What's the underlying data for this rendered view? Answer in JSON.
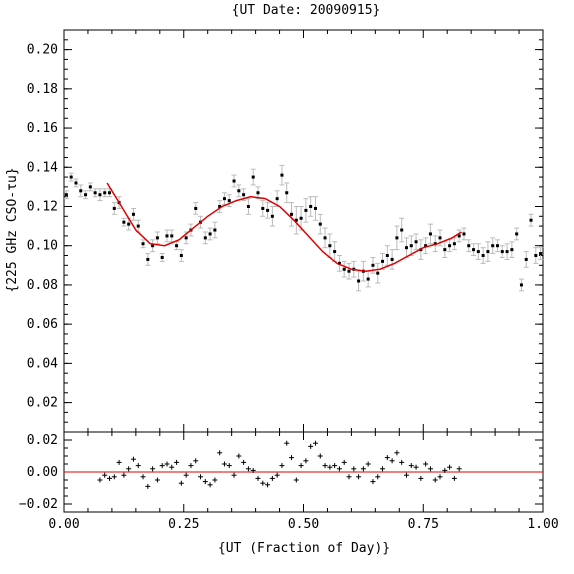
{
  "chart_data": [
    {
      "type": "scatter",
      "title": "{UT Date: 20090915}",
      "ylabel": "{225 GHz CSO-τu}",
      "xlabel": "",
      "xlim": [
        0,
        1
      ],
      "ylim": [
        0.005,
        0.21
      ],
      "yticks": [
        "0.02",
        "0.04",
        "0.06",
        "0.08",
        "0.10",
        "0.12",
        "0.14",
        "0.16",
        "0.18",
        "0.20"
      ],
      "xticks": [],
      "grid": false,
      "colors": {
        "fit": "#e00000",
        "errorbar": "#bbbbbb",
        "points": "#000000"
      },
      "series": [
        {
          "values_x": [
            0.005,
            0.015,
            0.025,
            0.035,
            0.045,
            0.055,
            0.065,
            0.075,
            0.085,
            0.095,
            0.105,
            0.115,
            0.125,
            0.135,
            0.145,
            0.155,
            0.165,
            0.175,
            0.185,
            0.195,
            0.205,
            0.215,
            0.225,
            0.235,
            0.245,
            0.255,
            0.265,
            0.275,
            0.285,
            0.295,
            0.305,
            0.315,
            0.325,
            0.335,
            0.345,
            0.355,
            0.365,
            0.375,
            0.385,
            0.395,
            0.405,
            0.415,
            0.425,
            0.435,
            0.445,
            0.455,
            0.465,
            0.475,
            0.485,
            0.495,
            0.505,
            0.515,
            0.525,
            0.535,
            0.545,
            0.555,
            0.565,
            0.575,
            0.585,
            0.595,
            0.605,
            0.615,
            0.625,
            0.635,
            0.645,
            0.655,
            0.665,
            0.675,
            0.685,
            0.695,
            0.705,
            0.715,
            0.725,
            0.735,
            0.745,
            0.755,
            0.765,
            0.775,
            0.785,
            0.795,
            0.805,
            0.815,
            0.825,
            0.835,
            0.845,
            0.855,
            0.865,
            0.875,
            0.885,
            0.895,
            0.905,
            0.915,
            0.925,
            0.935,
            0.945,
            0.955,
            0.965,
            0.975,
            0.985,
            0.995
          ],
          "values_y": [
            0.126,
            0.135,
            0.132,
            0.128,
            0.126,
            0.13,
            0.127,
            0.126,
            0.127,
            0.127,
            0.119,
            0.122,
            0.112,
            0.111,
            0.116,
            0.11,
            0.101,
            0.093,
            0.1,
            0.104,
            0.094,
            0.105,
            0.105,
            0.1,
            0.095,
            0.104,
            0.108,
            0.119,
            0.112,
            0.104,
            0.106,
            0.108,
            0.12,
            0.124,
            0.123,
            0.133,
            0.128,
            0.126,
            0.12,
            0.135,
            0.127,
            0.119,
            0.118,
            0.115,
            0.124,
            0.136,
            0.127,
            0.116,
            0.113,
            0.114,
            0.118,
            0.12,
            0.119,
            0.111,
            0.104,
            0.1,
            0.097,
            0.091,
            0.088,
            0.087,
            0.088,
            0.082,
            0.087,
            0.083,
            0.09,
            0.086,
            0.092,
            0.095,
            0.093,
            0.104,
            0.108,
            0.099,
            0.1,
            0.102,
            0.098,
            0.1,
            0.106,
            0.101,
            0.104,
            0.098,
            0.1,
            0.101,
            0.105,
            0.106,
            0.1,
            0.098,
            0.097,
            0.095,
            0.097,
            0.1,
            0.1,
            0.097,
            0.097,
            0.098,
            0.106,
            0.08,
            0.093,
            0.113,
            0.095,
            0.096
          ],
          "errors": [
            0.002,
            0.002,
            0.002,
            0.003,
            0.002,
            0.002,
            0.002,
            0.003,
            0.002,
            0.002,
            0.003,
            0.003,
            0.002,
            0.003,
            0.003,
            0.003,
            0.002,
            0.003,
            0.003,
            0.003,
            0.002,
            0.003,
            0.003,
            0.002,
            0.003,
            0.003,
            0.003,
            0.003,
            0.003,
            0.003,
            0.003,
            0.004,
            0.003,
            0.003,
            0.003,
            0.003,
            0.003,
            0.003,
            0.004,
            0.004,
            0.003,
            0.004,
            0.004,
            0.005,
            0.004,
            0.005,
            0.005,
            0.006,
            0.007,
            0.006,
            0.006,
            0.005,
            0.006,
            0.005,
            0.005,
            0.006,
            0.005,
            0.004,
            0.004,
            0.004,
            0.004,
            0.005,
            0.005,
            0.004,
            0.004,
            0.005,
            0.004,
            0.005,
            0.005,
            0.006,
            0.006,
            0.005,
            0.005,
            0.004,
            0.005,
            0.004,
            0.005,
            0.004,
            0.004,
            0.004,
            0.003,
            0.003,
            0.003,
            0.003,
            0.003,
            0.003,
            0.004,
            0.004,
            0.005,
            0.004,
            0.003,
            0.003,
            0.004,
            0.004,
            0.003,
            0.003,
            0.004,
            0.003,
            0.004,
            0.003
          ]
        }
      ],
      "fit": {
        "x": [
          0.09,
          0.12,
          0.15,
          0.18,
          0.21,
          0.24,
          0.27,
          0.3,
          0.33,
          0.36,
          0.39,
          0.42,
          0.45,
          0.48,
          0.51,
          0.54,
          0.57,
          0.6,
          0.63,
          0.66,
          0.69,
          0.72,
          0.75,
          0.78,
          0.81,
          0.83
        ],
        "y": [
          0.132,
          0.12,
          0.108,
          0.101,
          0.1,
          0.103,
          0.109,
          0.115,
          0.12,
          0.123,
          0.125,
          0.124,
          0.12,
          0.113,
          0.105,
          0.097,
          0.091,
          0.088,
          0.087,
          0.088,
          0.091,
          0.095,
          0.099,
          0.101,
          0.104,
          0.107
        ]
      }
    },
    {
      "type": "scatter",
      "title": "",
      "xlabel": "{UT (Fraction of Day)}",
      "ylabel": "",
      "xlim": [
        0,
        1
      ],
      "ylim": [
        -0.025,
        0.025
      ],
      "yticks": [
        "−0.02",
        "0.00",
        "0.02"
      ],
      "xticks": [
        "0.00",
        "0.25",
        "0.50",
        "0.75",
        "1.00"
      ],
      "grid": false,
      "zero_line_color": "#e00000",
      "series": [
        {
          "values_x": [
            0.075,
            0.085,
            0.095,
            0.105,
            0.115,
            0.125,
            0.135,
            0.145,
            0.155,
            0.165,
            0.175,
            0.185,
            0.195,
            0.205,
            0.215,
            0.225,
            0.235,
            0.245,
            0.255,
            0.265,
            0.275,
            0.285,
            0.295,
            0.305,
            0.315,
            0.325,
            0.335,
            0.345,
            0.355,
            0.365,
            0.375,
            0.385,
            0.395,
            0.405,
            0.415,
            0.425,
            0.435,
            0.445,
            0.455,
            0.465,
            0.475,
            0.485,
            0.495,
            0.505,
            0.515,
            0.525,
            0.535,
            0.545,
            0.555,
            0.565,
            0.575,
            0.585,
            0.595,
            0.605,
            0.615,
            0.625,
            0.635,
            0.645,
            0.655,
            0.665,
            0.675,
            0.685,
            0.695,
            0.705,
            0.715,
            0.725,
            0.735,
            0.745,
            0.755,
            0.765,
            0.775,
            0.785,
            0.795,
            0.805,
            0.815,
            0.825
          ],
          "values_y": [
            -0.005,
            -0.002,
            -0.004,
            -0.003,
            0.006,
            -0.002,
            0.002,
            0.008,
            0.004,
            -0.003,
            -0.009,
            0.002,
            -0.005,
            0.004,
            0.005,
            0.003,
            0.006,
            -0.007,
            -0.002,
            0.004,
            0.007,
            -0.003,
            -0.006,
            -0.008,
            -0.005,
            0.012,
            0.005,
            0.004,
            -0.002,
            0.01,
            0.006,
            0.002,
            0.001,
            -0.004,
            -0.007,
            -0.008,
            -0.004,
            -0.002,
            0.004,
            0.018,
            0.009,
            -0.005,
            0.004,
            0.007,
            0.016,
            0.018,
            0.01,
            0.004,
            0.003,
            0.004,
            0.002,
            0.006,
            -0.003,
            0.002,
            -0.003,
            0.002,
            0.005,
            -0.006,
            -0.003,
            0.002,
            0.009,
            0.007,
            0.012,
            0.006,
            -0.002,
            0.004,
            0.003,
            -0.004,
            0.005,
            0.002,
            -0.005,
            -0.003,
            0.001,
            0.003,
            -0.004,
            0.002
          ]
        }
      ]
    }
  ]
}
